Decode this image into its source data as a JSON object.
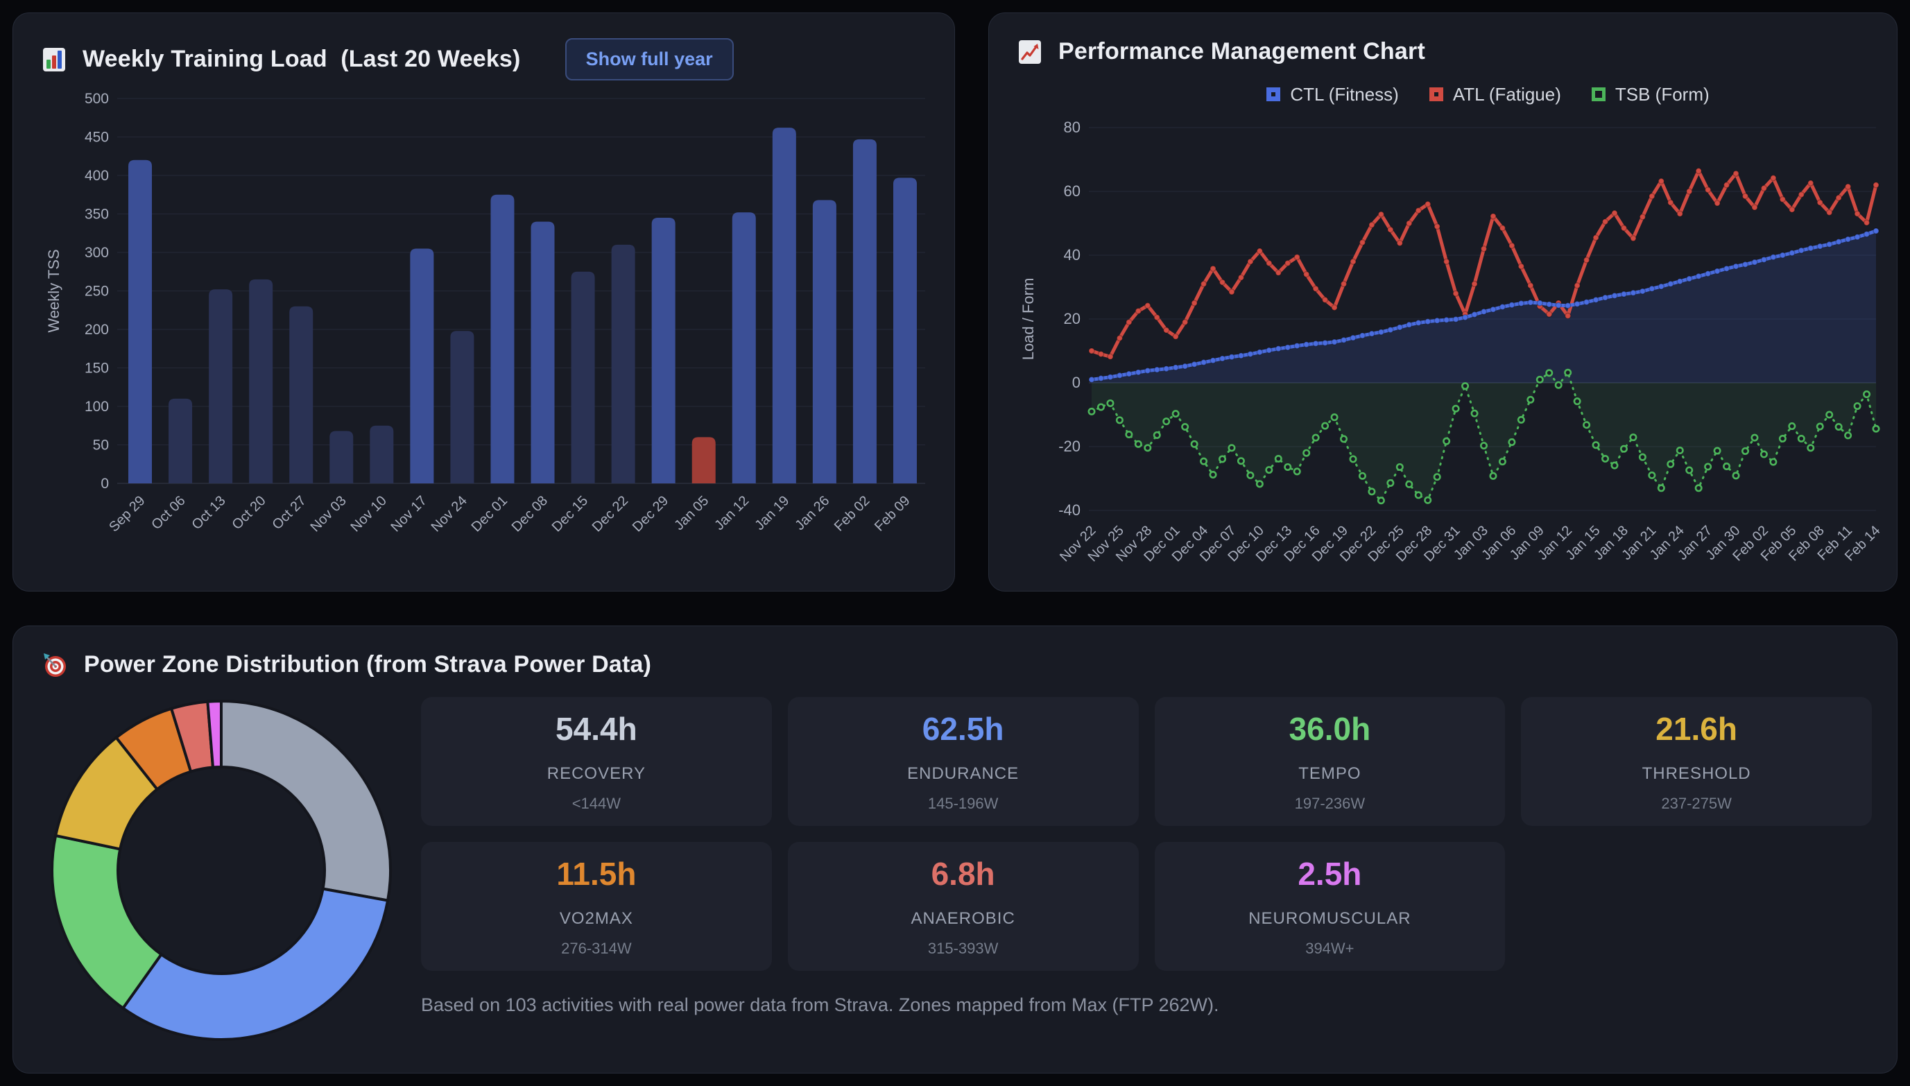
{
  "weekly_load": {
    "icon": "bar-chart-icon",
    "title": "Weekly Training Load  (Last 20 Weeks)",
    "button_label": "Show full year"
  },
  "pmc": {
    "icon": "line-chart-icon",
    "title": "Performance Management Chart",
    "legend": [
      {
        "label": "CTL (Fitness)",
        "color": "#4a6de0",
        "dashed": false
      },
      {
        "label": "ATL (Fatigue)",
        "color": "#d14b42",
        "dashed": false
      },
      {
        "label": "TSB (Form)",
        "color": "#4cb55a",
        "dashed": true
      }
    ]
  },
  "power_zones": {
    "icon": "target-icon",
    "title": "Power Zone Distribution (from Strava Power Data)",
    "cards": [
      {
        "hours": "54.4h",
        "zone": "RECOVERY",
        "range": "<144W",
        "color": "#c9d0dc"
      },
      {
        "hours": "62.5h",
        "zone": "ENDURANCE",
        "range": "145-196W",
        "color": "#6a92ee"
      },
      {
        "hours": "36.0h",
        "zone": "TEMPO",
        "range": "197-236W",
        "color": "#6ecf78"
      },
      {
        "hours": "21.6h",
        "zone": "THRESHOLD",
        "range": "237-275W",
        "color": "#dcb33e"
      },
      {
        "hours": "11.5h",
        "zone": "VO2MAX",
        "range": "276-314W",
        "color": "#e0882f"
      },
      {
        "hours": "6.8h",
        "zone": "ANAEROBIC",
        "range": "315-393W",
        "color": "#dd7168"
      },
      {
        "hours": "2.5h",
        "zone": "NEUROMUSCULAR",
        "range": "394W+",
        "color": "#d97af0"
      }
    ],
    "footnote": "Based on 103 activities with real power data from Strava. Zones mapped from Max (FTP 262W)."
  },
  "chart_data": [
    {
      "type": "bar",
      "title": "Weekly Training Load (Last 20 Weeks)",
      "ylabel": "Weekly TSS",
      "ylim": [
        0,
        500
      ],
      "ystep": 50,
      "grid": true,
      "categories": [
        "Sep 29",
        "Oct 06",
        "Oct 13",
        "Oct 20",
        "Oct 27",
        "Nov 03",
        "Nov 10",
        "Nov 17",
        "Nov 24",
        "Dec 01",
        "Dec 08",
        "Dec 15",
        "Dec 22",
        "Dec 29",
        "Jan 05",
        "Jan 12",
        "Jan 19",
        "Jan 26",
        "Feb 02",
        "Feb 09"
      ],
      "values": [
        420,
        110,
        252,
        265,
        230,
        68,
        75,
        305,
        198,
        375,
        340,
        275,
        310,
        345,
        60,
        352,
        462,
        368,
        447,
        397
      ],
      "styles": [
        "bright",
        "muted",
        "muted",
        "muted",
        "muted",
        "muted",
        "muted",
        "bright",
        "muted",
        "bright",
        "bright",
        "muted",
        "muted",
        "bright",
        "flag",
        "bright",
        "bright",
        "bright",
        "bright",
        "bright"
      ],
      "colors": {
        "bright": "#3b4f96",
        "muted": "#2a3254",
        "flag": "#a03d36"
      }
    },
    {
      "type": "line",
      "title": "Performance Management Chart",
      "ylabel": "Load / Form",
      "ylim": [
        -40,
        80
      ],
      "yticks": [
        80,
        60,
        40,
        20,
        0,
        -20,
        -40
      ],
      "grid": true,
      "legend_position": "top",
      "x_labels": [
        "Nov 22",
        "Nov 25",
        "Nov 28",
        "Dec 01",
        "Dec 04",
        "Dec 07",
        "Dec 10",
        "Dec 13",
        "Dec 16",
        "Dec 19",
        "Dec 22",
        "Dec 25",
        "Dec 28",
        "Dec 31",
        "Jan 03",
        "Jan 06",
        "Jan 09",
        "Jan 12",
        "Jan 15",
        "Jan 18",
        "Jan 21",
        "Jan 24",
        "Jan 27",
        "Jan 30",
        "Feb 02",
        "Feb 05",
        "Feb 08",
        "Feb 11",
        "Feb 14"
      ],
      "x_label_step": 3,
      "series": [
        {
          "name": "CTL (Fitness)",
          "color": "#4a6de0",
          "fill": "rgba(74,109,224,0.16)",
          "values": [
            1,
            1.4,
            1.8,
            2.3,
            2.8,
            3.3,
            3.8,
            4.1,
            4.4,
            4.8,
            5.2,
            5.8,
            6.4,
            7,
            7.6,
            8.1,
            8.5,
            9,
            9.6,
            10.2,
            10.7,
            11.1,
            11.6,
            12,
            12.3,
            12.5,
            12.8,
            13.4,
            14.1,
            14.8,
            15.4,
            15.9,
            16.6,
            17.4,
            18.2,
            18.8,
            19.2,
            19.5,
            19.7,
            19.9,
            20.5,
            21.4,
            22.3,
            23,
            23.8,
            24.4,
            24.9,
            25.2,
            25,
            24.6,
            24.3,
            24.2,
            24.7,
            25.3,
            26,
            26.7,
            27.3,
            27.8,
            28.2,
            28.7,
            29.5,
            30.2,
            31,
            31.8,
            32.6,
            33.4,
            34.2,
            35,
            35.8,
            36.5,
            37.1,
            37.8,
            38.6,
            39.4,
            40,
            40.7,
            41.5,
            42.2,
            42.8,
            43.4,
            44.2,
            45,
            45.7,
            46.6,
            47.6
          ]
        },
        {
          "name": "ATL (Fatigue)",
          "color": "#d14b42",
          "values": [
            10,
            9,
            8.2,
            14,
            19,
            22.5,
            24.2,
            20.5,
            16.5,
            14.5,
            19,
            25,
            31,
            35.8,
            31.5,
            28.5,
            33,
            38,
            41.3,
            37.5,
            34.5,
            37.5,
            39.4,
            34,
            29.5,
            26,
            23.6,
            31,
            38,
            44,
            49.5,
            52.8,
            48,
            43.8,
            50,
            54,
            56,
            49,
            38,
            28,
            21.5,
            31,
            42,
            52.2,
            48.5,
            43,
            36.5,
            30.5,
            24,
            21.5,
            25,
            21,
            30.5,
            38.5,
            45.5,
            50.5,
            53.2,
            48.5,
            45.3,
            52,
            58.5,
            63.2,
            56.5,
            53,
            60,
            66.4,
            60.5,
            56.3,
            62,
            65.6,
            58.5,
            55,
            61,
            64.2,
            57.5,
            54.3,
            59,
            62.6,
            56.5,
            53.4,
            58,
            61.5,
            53,
            50.2,
            62
          ]
        },
        {
          "name": "TSB (Form)",
          "color": "#4cb55a",
          "dashed": true,
          "open_markers": true,
          "fill": "rgba(76,181,90,0.10)",
          "values": [
            -9,
            -7.6,
            -6.4,
            -11.7,
            -16.2,
            -19.2,
            -20.4,
            -16.4,
            -12.1,
            -9.7,
            -13.8,
            -19.2,
            -24.6,
            -28.8,
            -23.9,
            -20.4,
            -24.5,
            -29,
            -31.7,
            -27.3,
            -23.8,
            -26.4,
            -27.8,
            -22,
            -17.2,
            -13.5,
            -10.8,
            -17.6,
            -23.9,
            -29.2,
            -34.1,
            -36.9,
            -31.4,
            -26.4,
            -31.8,
            -35.2,
            -36.8,
            -29.5,
            -18.3,
            -8.1,
            -1,
            -9.6,
            -19.7,
            -29.2,
            -24.7,
            -18.6,
            -11.6,
            -5.3,
            1,
            3.1,
            -0.7,
            3.2,
            -5.8,
            -13.2,
            -19.5,
            -23.8,
            -25.9,
            -20.7,
            -17.1,
            -23.3,
            -29,
            -33,
            -25.5,
            -21.2,
            -27.4,
            -33,
            -26.3,
            -21.3,
            -26.2,
            -29.1,
            -21.4,
            -17.2,
            -22.4,
            -24.8,
            -17.5,
            -13.6,
            -17.5,
            -20.4,
            -13.7,
            -10,
            -13.8,
            -16.5,
            -7.3,
            -3.6,
            -14.4
          ]
        }
      ]
    },
    {
      "type": "pie",
      "donut": true,
      "unit": "h",
      "labels": [
        "Recovery",
        "Endurance",
        "Tempo",
        "Threshold",
        "VO2max",
        "Anaerobic",
        "Neuromuscular"
      ],
      "values": [
        54.4,
        62.5,
        36.0,
        21.6,
        11.5,
        6.8,
        2.5
      ],
      "colors": [
        "#99a2b3",
        "#6a92ee",
        "#6ecf78",
        "#dcb33e",
        "#e07d2e",
        "#dc6f68",
        "#e26ef2"
      ]
    }
  ]
}
